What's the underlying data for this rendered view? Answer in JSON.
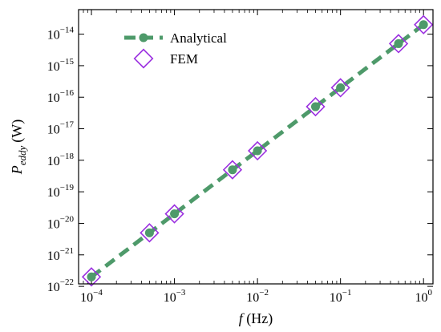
{
  "chart_data": {
    "type": "line",
    "xscale": "log",
    "yscale": "log",
    "xlabel": {
      "var": "f",
      "unit": "(Hz)"
    },
    "ylabel": {
      "var": "P",
      "sub": "eddy",
      "unit": "(W)"
    },
    "xlim": [
      7e-05,
      1.3
    ],
    "ylim": [
      1.2e-22,
      6e-14
    ],
    "grid": false,
    "legend": "top-left",
    "x_ticks": [
      {
        "value": 0.0001,
        "base": "10",
        "exp": "−4"
      },
      {
        "value": 0.001,
        "base": "10",
        "exp": "−3"
      },
      {
        "value": 0.01,
        "base": "10",
        "exp": "−2"
      },
      {
        "value": 0.1,
        "base": "10",
        "exp": "−1"
      },
      {
        "value": 1,
        "base": "10",
        "exp": "0"
      }
    ],
    "y_ticks": [
      {
        "value": 1e-22,
        "base": "10",
        "exp": "−22"
      },
      {
        "value": 1e-21,
        "base": "10",
        "exp": "−21"
      },
      {
        "value": 1e-20,
        "base": "10",
        "exp": "−20"
      },
      {
        "value": 1e-19,
        "base": "10",
        "exp": "−19"
      },
      {
        "value": 1e-18,
        "base": "10",
        "exp": "−18"
      },
      {
        "value": 1e-17,
        "base": "10",
        "exp": "−17"
      },
      {
        "value": 1e-16,
        "base": "10",
        "exp": "−16"
      },
      {
        "value": 1e-15,
        "base": "10",
        "exp": "−15"
      },
      {
        "value": 1e-14,
        "base": "10",
        "exp": "−14"
      }
    ],
    "series": [
      {
        "name": "Analytical",
        "style": "dashed-line-with-circles",
        "color": "#4e9a6a",
        "x": [
          0.0001,
          0.0005,
          0.001,
          0.005,
          0.01,
          0.05,
          0.1,
          0.5,
          1
        ],
        "y": [
          2e-22,
          5e-21,
          2e-20,
          5e-19,
          2e-18,
          5e-17,
          2e-16,
          5e-15,
          2e-14
        ]
      },
      {
        "name": "FEM",
        "style": "diamond-markers",
        "color": "#9b30e0",
        "x": [
          0.0001,
          0.0005,
          0.001,
          0.005,
          0.01,
          0.05,
          0.1,
          0.5,
          1
        ],
        "y": [
          2e-22,
          5e-21,
          2e-20,
          5e-19,
          2e-18,
          5e-17,
          2e-16,
          5e-15,
          2e-14
        ]
      }
    ]
  }
}
